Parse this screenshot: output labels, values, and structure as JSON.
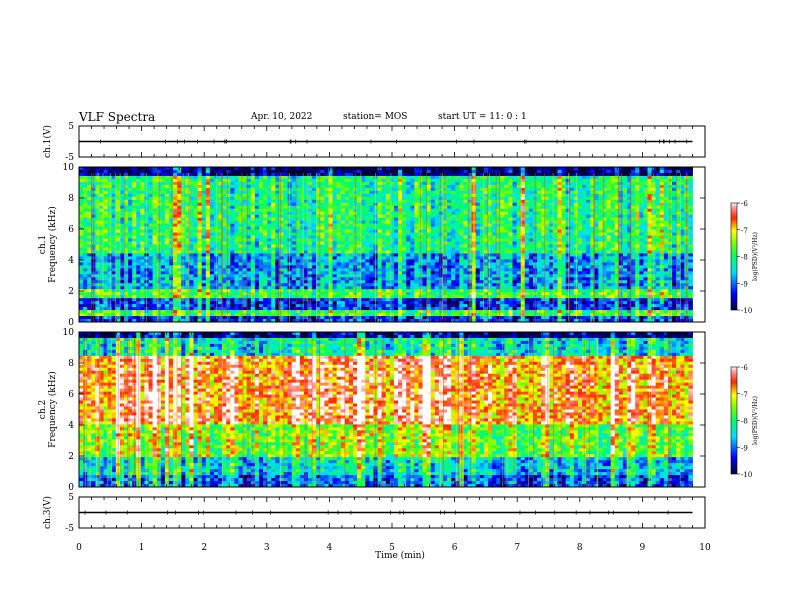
{
  "header": {
    "title": "VLF Spectra",
    "date": "Apr. 10, 2022",
    "station": "station= MOS",
    "start": "start  UT =   11: 0  : 1"
  },
  "chart_data": [
    {
      "type": "line",
      "name": "ch1-waveform",
      "ylabel": "ch.1(V)",
      "ylim": [
        -5,
        5
      ],
      "yticks": [
        "5",
        "-5"
      ],
      "xlim": [
        0,
        10
      ],
      "series": [
        {
          "x": [
            0,
            9.8
          ],
          "y": [
            0,
            0
          ]
        }
      ]
    },
    {
      "type": "heatmap",
      "name": "ch1-spectrogram",
      "ylabel": "ch.1\nFrequency (kHz)",
      "ylim": [
        0,
        10
      ],
      "yticks": [
        "0",
        "2",
        "4",
        "6",
        "8",
        "10"
      ],
      "xlim": [
        0,
        10
      ],
      "data_end_min": 9.8,
      "colorbar": {
        "label": "log(PSD)(V²/Hz)",
        "range": [
          -10,
          -6
        ],
        "ticks": [
          "-6",
          "-7",
          "-8",
          "-9",
          "-10"
        ]
      }
    },
    {
      "type": "heatmap",
      "name": "ch2-spectrogram",
      "ylabel": "ch.2\nFrequency (kHz)",
      "ylim": [
        0,
        10
      ],
      "yticks": [
        "0",
        "2",
        "4",
        "6",
        "8",
        "10"
      ],
      "xlim": [
        0,
        10
      ],
      "data_end_min": 9.8,
      "colorbar": {
        "label": "log(PSD)(V²/Hz)",
        "range": [
          -10,
          -6
        ],
        "ticks": [
          "-6",
          "-7",
          "-8",
          "-9",
          "-10"
        ]
      }
    },
    {
      "type": "line",
      "name": "ch3-waveform",
      "ylabel": "ch.3(V)",
      "ylim": [
        -5,
        5
      ],
      "yticks": [
        "5",
        "-5"
      ],
      "xlim": [
        0,
        10
      ],
      "series": [
        {
          "x": [
            0,
            9.8
          ],
          "y": [
            0,
            0
          ]
        }
      ],
      "xlabel": "Time (min)",
      "xticks": [
        "0",
        "1",
        "2",
        "3",
        "4",
        "5",
        "6",
        "7",
        "8",
        "9",
        "10"
      ]
    }
  ],
  "colors": {
    "low": "#000033",
    "mid1": "#0000ff",
    "mid2": "#00ffff",
    "mid3": "#00ff00",
    "high1": "#ffff00",
    "high2": "#ff0000",
    "max": "#ffffff"
  }
}
